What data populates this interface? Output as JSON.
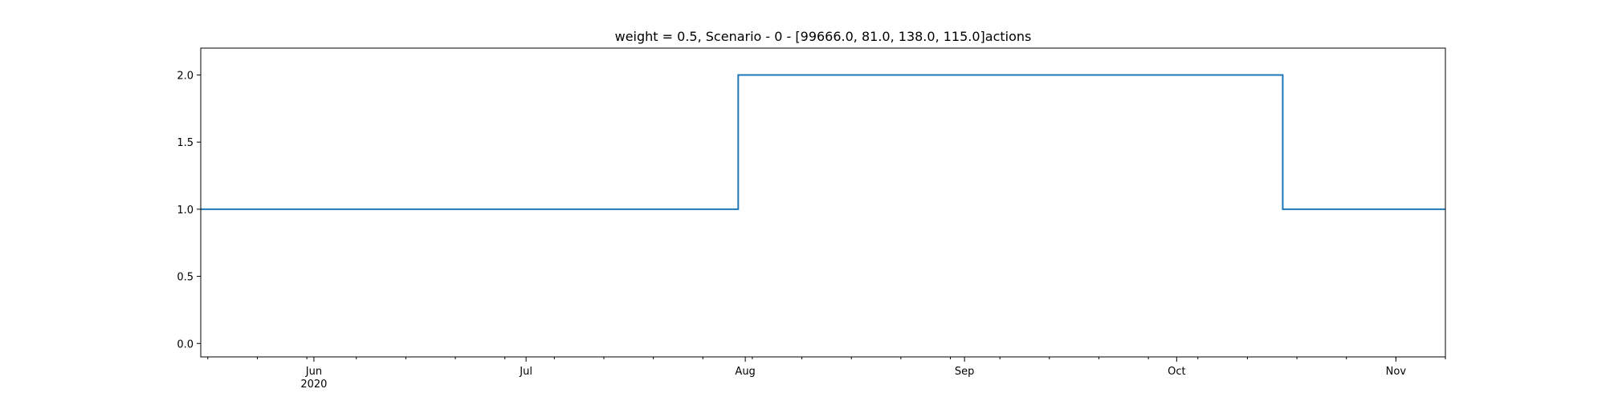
{
  "chart_data": {
    "type": "line",
    "step": true,
    "title": "weight = 0.5, Scenario - 0 - [99666.0, 81.0, 138.0, 115.0]actions",
    "xlabel": "",
    "ylabel": "",
    "xlim": [
      "2020-05-16",
      "2020-11-08"
    ],
    "ylim": [
      -0.1,
      2.2
    ],
    "grid": false,
    "series": [
      {
        "color": "#1f77b4",
        "x": [
          "2020-05-16",
          "2020-07-31",
          "2020-07-31",
          "2020-10-16",
          "2020-10-16",
          "2020-11-08"
        ],
        "y": [
          1.0,
          1.0,
          2.0,
          2.0,
          1.0,
          1.0
        ]
      }
    ],
    "y_ticks": [
      {
        "value": 0.0,
        "label": "0.0"
      },
      {
        "value": 0.5,
        "label": "0.5"
      },
      {
        "value": 1.0,
        "label": "1.0"
      },
      {
        "value": 1.5,
        "label": "1.5"
      },
      {
        "value": 2.0,
        "label": "2.0"
      }
    ],
    "x_ticks": [
      {
        "date": "2020-06-01",
        "label": "Jun",
        "sublabel": "2020"
      },
      {
        "date": "2020-07-01",
        "label": "Jul",
        "sublabel": ""
      },
      {
        "date": "2020-08-01",
        "label": "Aug",
        "sublabel": ""
      },
      {
        "date": "2020-09-01",
        "label": "Sep",
        "sublabel": ""
      },
      {
        "date": "2020-10-01",
        "label": "Oct",
        "sublabel": ""
      },
      {
        "date": "2020-11-01",
        "label": "Nov",
        "sublabel": ""
      }
    ],
    "x_minor_ticks": [
      "2020-05-17",
      "2020-05-24",
      "2020-05-31",
      "2020-06-07",
      "2020-06-14",
      "2020-06-21",
      "2020-06-28",
      "2020-07-05",
      "2020-07-12",
      "2020-07-19",
      "2020-07-26",
      "2020-08-02",
      "2020-08-09",
      "2020-08-16",
      "2020-08-23",
      "2020-08-30",
      "2020-09-06",
      "2020-09-13",
      "2020-09-20",
      "2020-09-27",
      "2020-10-04",
      "2020-10-11",
      "2020-10-18",
      "2020-10-25",
      "2020-11-01",
      "2020-11-08"
    ]
  }
}
